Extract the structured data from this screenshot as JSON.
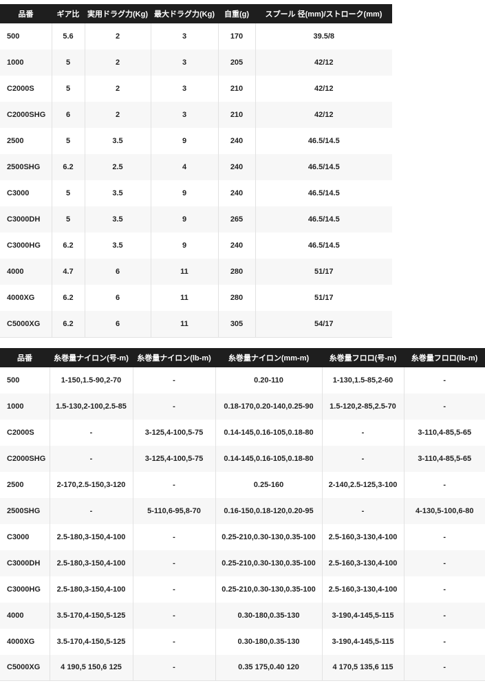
{
  "colors": {
    "header_bg": "#1e1e1e",
    "header_fg": "#ffffff",
    "row_alt": "#f7f7f7",
    "grid": "#e2e2e2",
    "cell_fg": "#222222"
  },
  "spec_table": {
    "columns": [
      "品番",
      "ギア比",
      "実用ドラグ力(Kg)",
      "最大ドラグ力(Kg)",
      "自重(g)",
      "スプール 径(mm)/ストローク(mm)"
    ],
    "rows": [
      [
        "500",
        "5.6",
        "2",
        "3",
        "170",
        "39.5/8"
      ],
      [
        "1000",
        "5",
        "2",
        "3",
        "205",
        "42/12"
      ],
      [
        "C2000S",
        "5",
        "2",
        "3",
        "210",
        "42/12"
      ],
      [
        "C2000SHG",
        "6",
        "2",
        "3",
        "210",
        "42/12"
      ],
      [
        "2500",
        "5",
        "3.5",
        "9",
        "240",
        "46.5/14.5"
      ],
      [
        "2500SHG",
        "6.2",
        "2.5",
        "4",
        "240",
        "46.5/14.5"
      ],
      [
        "C3000",
        "5",
        "3.5",
        "9",
        "240",
        "46.5/14.5"
      ],
      [
        "C3000DH",
        "5",
        "3.5",
        "9",
        "265",
        "46.5/14.5"
      ],
      [
        "C3000HG",
        "6.2",
        "3.5",
        "9",
        "240",
        "46.5/14.5"
      ],
      [
        "4000",
        "4.7",
        "6",
        "11",
        "280",
        "51/17"
      ],
      [
        "4000XG",
        "6.2",
        "6",
        "11",
        "280",
        "51/17"
      ],
      [
        "C5000XG",
        "6.2",
        "6",
        "11",
        "305",
        "54/17"
      ]
    ]
  },
  "capacity_table": {
    "columns": [
      "品番",
      "糸巻量ナイロン(号-m)",
      "糸巻量ナイロン(lb-m)",
      "糸巻量ナイロン(mm-m)",
      "糸巻量フロロ(号-m)",
      "糸巻量フロロ(lb-m)"
    ],
    "rows": [
      [
        "500",
        "1-150,1.5-90,2-70",
        "-",
        "0.20-110",
        "1-130,1.5-85,2-60",
        "-"
      ],
      [
        "1000",
        "1.5-130,2-100,2.5-85",
        "-",
        "0.18-170,0.20-140,0.25-90",
        "1.5-120,2-85,2.5-70",
        "-"
      ],
      [
        "C2000S",
        "-",
        "3-125,4-100,5-75",
        "0.14-145,0.16-105,0.18-80",
        "-",
        "3-110,4-85,5-65"
      ],
      [
        "C2000SHG",
        "-",
        "3-125,4-100,5-75",
        "0.14-145,0.16-105,0.18-80",
        "-",
        "3-110,4-85,5-65"
      ],
      [
        "2500",
        "2-170,2.5-150,3-120",
        "-",
        "0.25-160",
        "2-140,2.5-125,3-100",
        "-"
      ],
      [
        "2500SHG",
        "-",
        "5-110,6-95,8-70",
        "0.16-150,0.18-120,0.20-95",
        "-",
        "4-130,5-100,6-80"
      ],
      [
        "C3000",
        "2.5-180,3-150,4-100",
        "-",
        "0.25-210,0.30-130,0.35-100",
        "2.5-160,3-130,4-100",
        "-"
      ],
      [
        "C3000DH",
        "2.5-180,3-150,4-100",
        "-",
        "0.25-210,0.30-130,0.35-100",
        "2.5-160,3-130,4-100",
        "-"
      ],
      [
        "C3000HG",
        "2.5-180,3-150,4-100",
        "-",
        "0.25-210,0.30-130,0.35-100",
        "2.5-160,3-130,4-100",
        "-"
      ],
      [
        "4000",
        "3.5-170,4-150,5-125",
        "-",
        "0.30-180,0.35-130",
        "3-190,4-145,5-115",
        "-"
      ],
      [
        "4000XG",
        "3.5-170,4-150,5-125",
        "-",
        "0.30-180,0.35-130",
        "3-190,4-145,5-115",
        "-"
      ],
      [
        "C5000XG",
        "4 190,5 150,6 125",
        "-",
        "0.35 175,0.40 120",
        "4 170,5 135,6 115",
        "-"
      ]
    ]
  }
}
